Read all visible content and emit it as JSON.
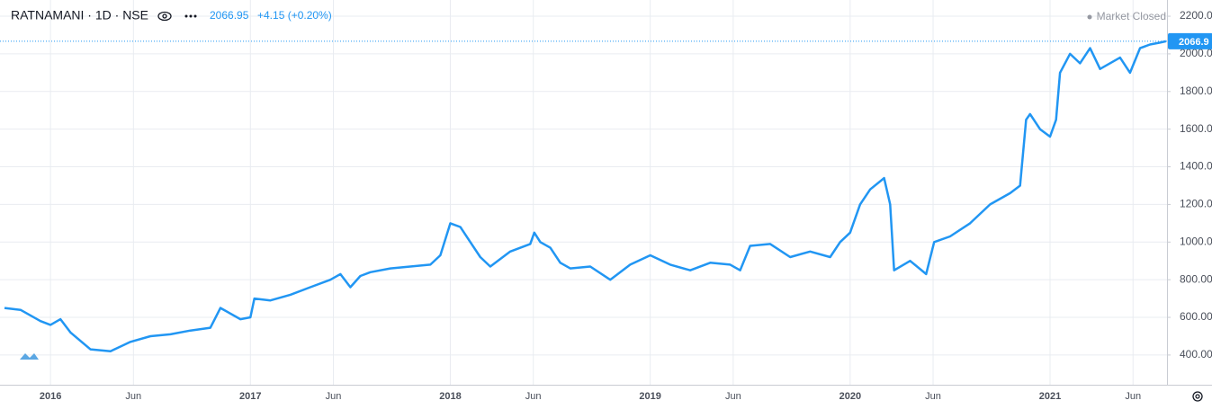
{
  "chart_data": {
    "type": "line",
    "symbol": "RATNAMANI · 1D · NSE",
    "price": 2066.95,
    "change": "+4.15 (+0.20%)",
    "status": "Market Closed",
    "last_price_label": "2066.9",
    "color": "#2196f3",
    "grid": true,
    "x": [
      2015.77,
      2015.85,
      2015.95,
      2016.0,
      2016.05,
      2016.1,
      2016.2,
      2016.3,
      2016.4,
      2016.5,
      2016.6,
      2016.7,
      2016.8,
      2016.85,
      2016.95,
      2017.0,
      2017.02,
      2017.1,
      2017.2,
      2017.3,
      2017.4,
      2017.45,
      2017.5,
      2017.55,
      2017.6,
      2017.7,
      2017.8,
      2017.9,
      2017.95,
      2018.0,
      2018.05,
      2018.1,
      2018.15,
      2018.2,
      2018.3,
      2018.4,
      2018.42,
      2018.45,
      2018.5,
      2018.55,
      2018.6,
      2018.7,
      2018.8,
      2018.9,
      2019.0,
      2019.1,
      2019.2,
      2019.3,
      2019.4,
      2019.45,
      2019.5,
      2019.6,
      2019.7,
      2019.8,
      2019.9,
      2019.95,
      2020.0,
      2020.05,
      2020.1,
      2020.17,
      2020.2,
      2020.22,
      2020.3,
      2020.38,
      2020.42,
      2020.5,
      2020.6,
      2020.7,
      2020.8,
      2020.85,
      2020.88,
      2020.9,
      2020.95,
      2021.0,
      2021.03,
      2021.05,
      2021.1,
      2021.15,
      2021.2,
      2021.25,
      2021.35,
      2021.4,
      2021.45,
      2021.5,
      2021.55,
      2021.58
    ],
    "values": [
      650,
      640,
      580,
      560,
      590,
      520,
      430,
      420,
      470,
      500,
      510,
      530,
      545,
      650,
      590,
      600,
      700,
      690,
      720,
      760,
      800,
      830,
      760,
      820,
      840,
      860,
      870,
      880,
      930,
      1100,
      1080,
      1000,
      920,
      870,
      950,
      990,
      1050,
      1000,
      970,
      890,
      860,
      870,
      800,
      880,
      930,
      880,
      850,
      890,
      880,
      850,
      980,
      990,
      920,
      950,
      920,
      1000,
      1050,
      1200,
      1280,
      1340,
      1200,
      850,
      900,
      830,
      1000,
      1030,
      1100,
      1200,
      1260,
      1300,
      1650,
      1680,
      1600,
      1560,
      1650,
      1900,
      2000,
      1950,
      2030,
      1920,
      1980,
      1900,
      2030,
      2050,
      2060,
      2066.95
    ],
    "xlim": [
      2015.77,
      2021.585
    ],
    "xticks": [
      2016,
      {
        "value": 2016.415,
        "label": "Jun"
      },
      2017,
      {
        "value": 2017.415,
        "label": "Jun"
      },
      2018,
      {
        "value": 2018.415,
        "label": "Jun"
      },
      2019,
      {
        "value": 2019.415,
        "label": "Jun"
      },
      2020,
      {
        "value": 2020.415,
        "label": "Jun"
      },
      2021,
      {
        "value": 2021.415,
        "label": "Jun"
      }
    ],
    "ylim": [
      242,
      2248
    ],
    "yticks": [
      {
        "value": 400,
        "label": "400.00"
      },
      {
        "value": 600,
        "label": "600.00"
      },
      {
        "value": 800,
        "label": "800.00"
      },
      {
        "value": 1000,
        "label": "1000.00"
      },
      {
        "value": 1200,
        "label": "1200.00"
      },
      {
        "value": 1400,
        "label": "1400.00"
      },
      {
        "value": 1600,
        "label": "1600.00"
      },
      {
        "value": 1800,
        "label": "1800.00"
      },
      {
        "value": 2000,
        "label": "2000.0"
      },
      {
        "value": 2200,
        "label": "2200.0"
      }
    ]
  }
}
